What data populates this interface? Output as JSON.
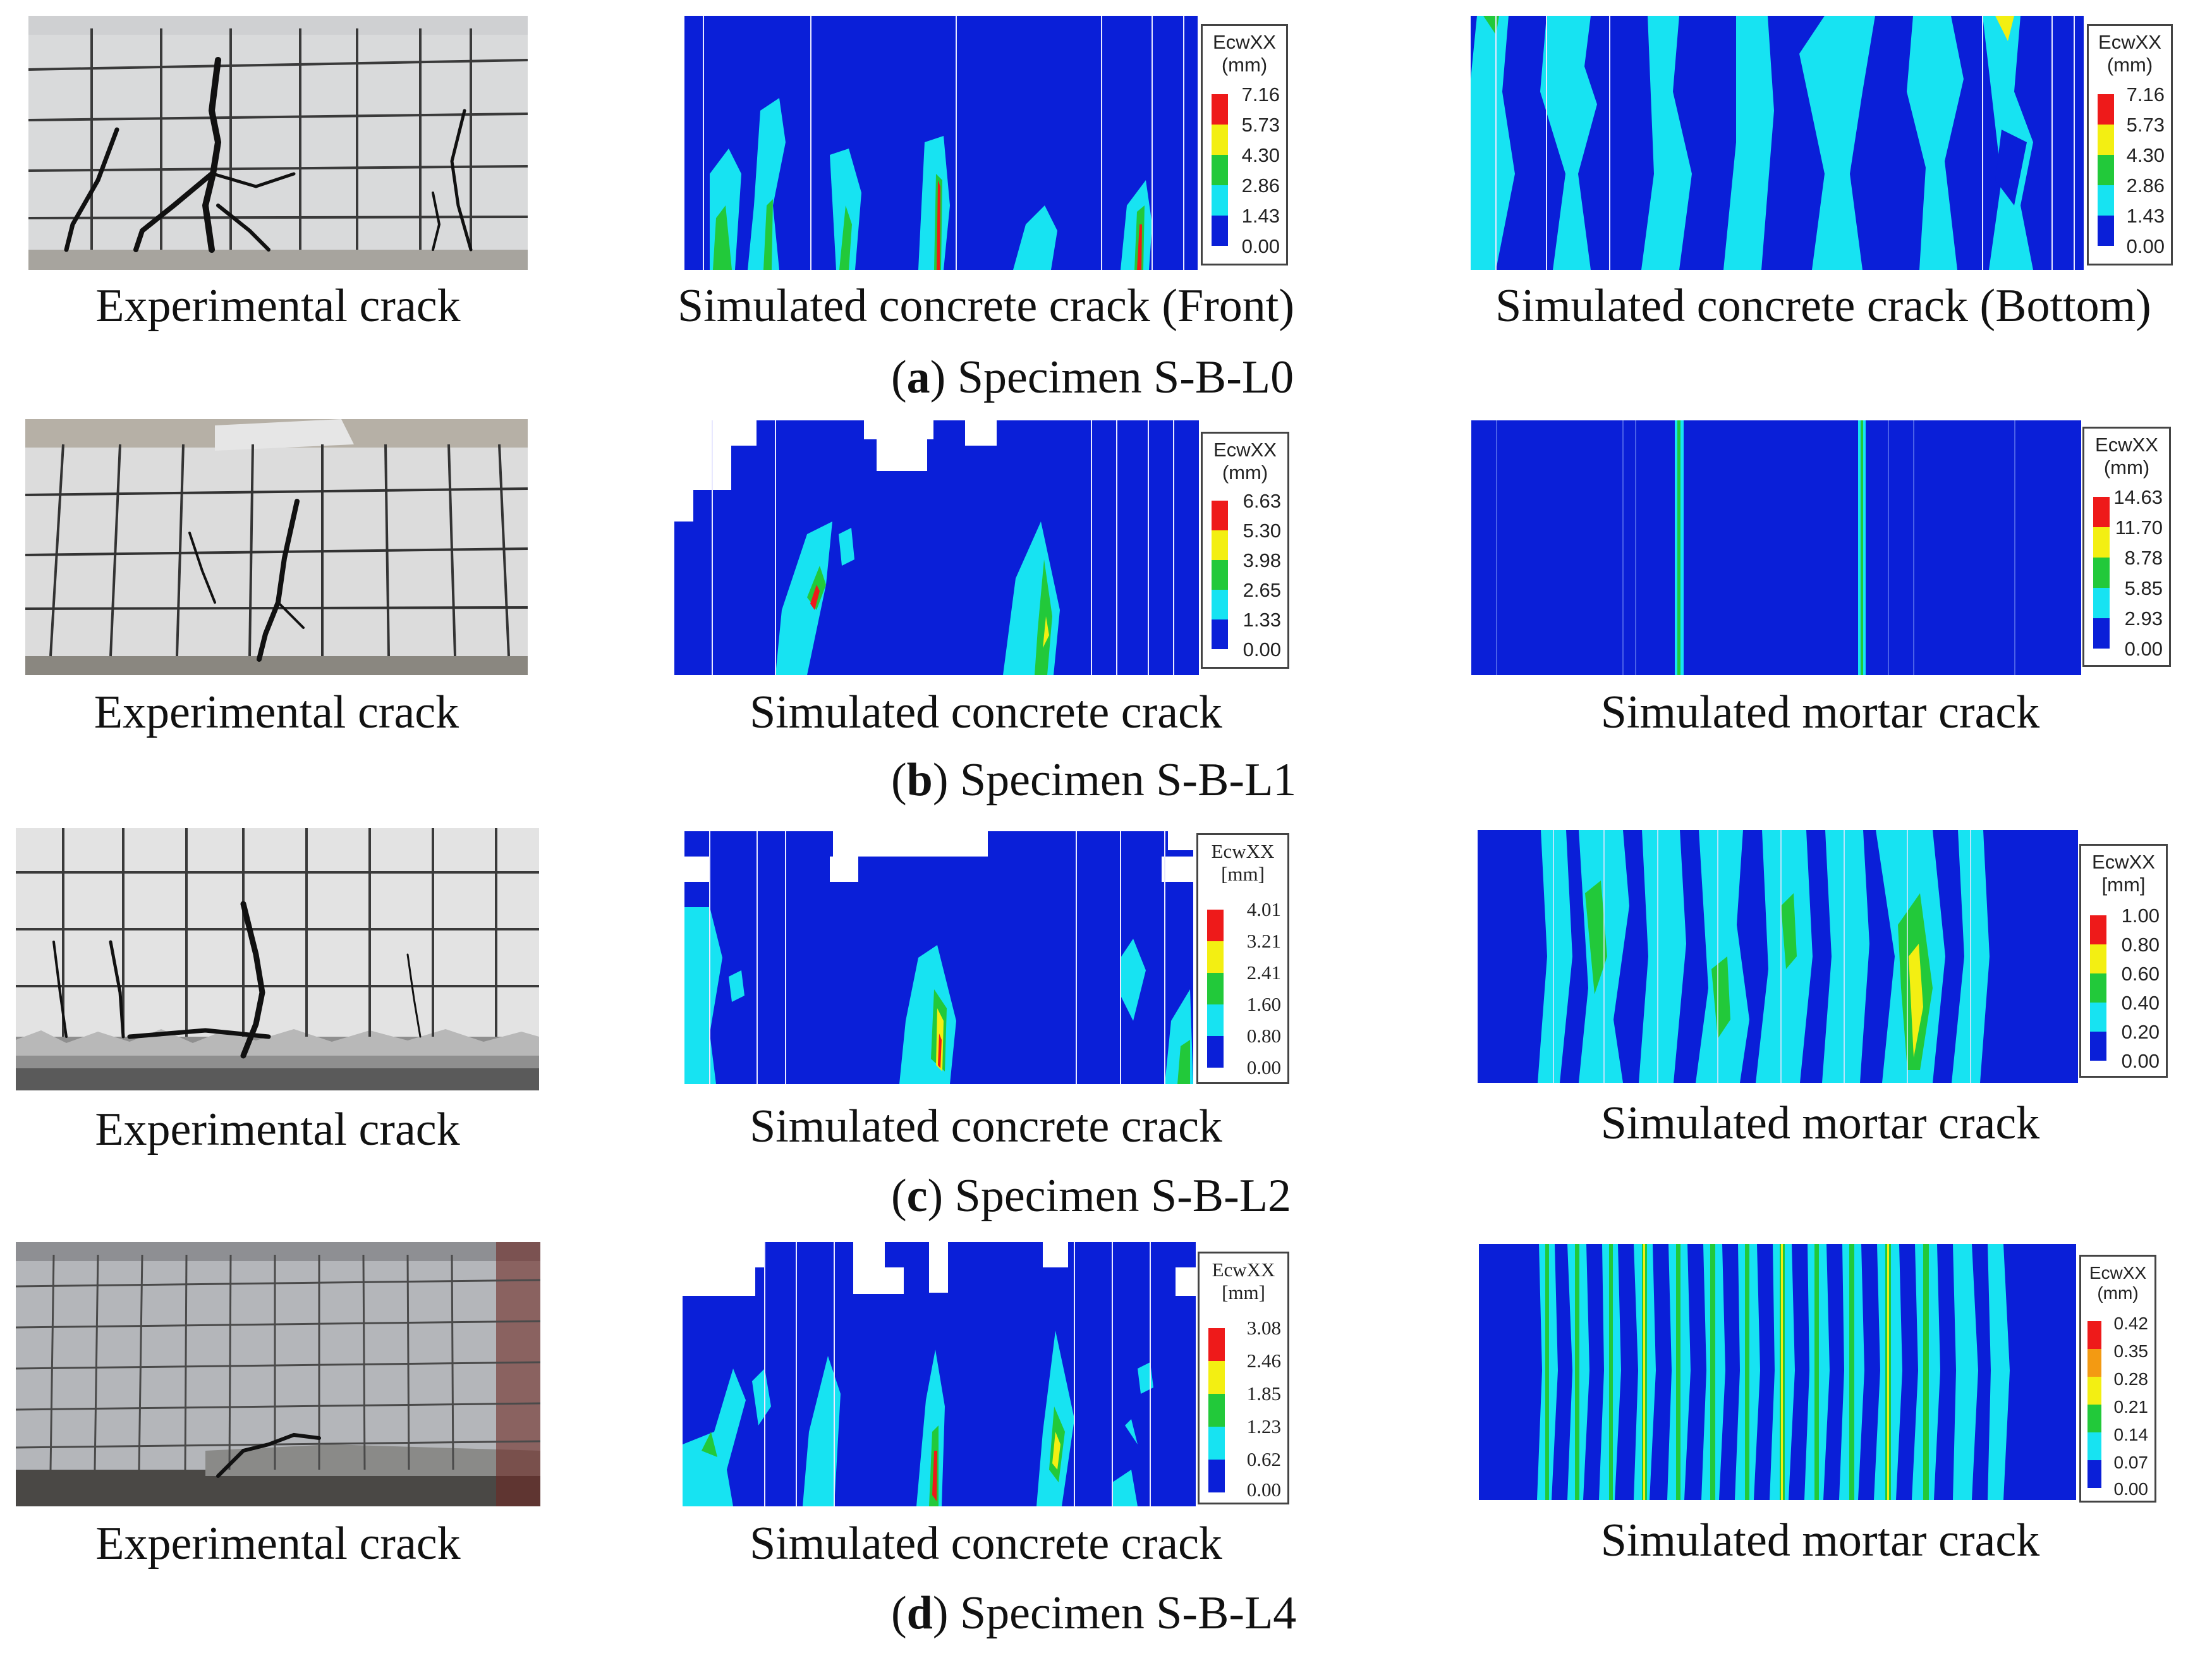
{
  "rows": [
    {
      "experimental_caption": "Experimental crack",
      "front_caption": "Simulated concrete crack (Front)",
      "second_caption": "Simulated concrete crack (Bottom)",
      "sub_letter": "a",
      "sub_text": "Specimen S-B-L0",
      "legend_front": {
        "title1": "EcwXX",
        "title2": "(mm)",
        "ticks": [
          "7.16",
          "5.73",
          "4.30",
          "2.86",
          "1.43",
          "0.00"
        ]
      },
      "legend_second": {
        "title1": "EcwXX",
        "title2": "(mm)",
        "ticks": [
          "7.16",
          "5.73",
          "4.30",
          "2.86",
          "1.43",
          "0.00"
        ]
      }
    },
    {
      "experimental_caption": "Experimental crack",
      "front_caption": "Simulated concrete crack",
      "second_caption": "Simulated mortar crack",
      "sub_letter": "b",
      "sub_text": "Specimen S-B-L1",
      "legend_front": {
        "title1": "EcwXX",
        "title2": "(mm)",
        "ticks": [
          "6.63",
          "5.30",
          "3.98",
          "2.65",
          "1.33",
          "0.00"
        ]
      },
      "legend_second": {
        "title1": "EcwXX",
        "title2": "(mm)",
        "ticks": [
          "14.63",
          "11.70",
          "8.78",
          "5.85",
          "2.93",
          "0.00"
        ]
      }
    },
    {
      "experimental_caption": "Experimental crack",
      "front_caption": "Simulated concrete crack",
      "second_caption": "Simulated mortar crack",
      "sub_letter": "c",
      "sub_text": "Specimen S-B-L2",
      "legend_front": {
        "title1": "EcwXX",
        "title2": "[mm]",
        "ticks": [
          "4.01",
          "3.21",
          "2.41",
          "1.60",
          "0.80",
          "0.00"
        ]
      },
      "legend_second": {
        "title1": "EcwXX",
        "title2": "[mm]",
        "ticks": [
          "1.00",
          "0.80",
          "0.60",
          "0.40",
          "0.20",
          "0.00"
        ]
      }
    },
    {
      "experimental_caption": "Experimental crack",
      "front_caption": "Simulated concrete crack",
      "second_caption": "Simulated mortar crack",
      "sub_letter": "d",
      "sub_text": "Specimen S-B-L4",
      "legend_front": {
        "title1": "EcwXX",
        "title2": "[mm]",
        "ticks": [
          "3.08",
          "2.46",
          "1.85",
          "1.23",
          "0.62",
          "0.00"
        ]
      },
      "legend_second": {
        "title1": "EcwXX",
        "title2": "(mm)",
        "ticks": [
          "0.42",
          "0.35",
          "0.28",
          "0.21",
          "0.14",
          "0.07",
          "0.00"
        ]
      }
    }
  ],
  "colors": {
    "contour_blue": "#0a1fd8",
    "contour_cyan": "#17e3f2",
    "contour_green": "#22c93a",
    "contour_yellow": "#f3ef12",
    "contour_red": "#ee1a1a",
    "legend_scale_6": [
      "#ee1a1a",
      "#f3ef12",
      "#22c93a",
      "#17e3f2",
      "#0a1fd8"
    ],
    "legend_scale_7": [
      "#ee1a1a",
      "#f39a12",
      "#f3ef12",
      "#22c93a",
      "#17e3f2",
      "#0a1fd8"
    ]
  }
}
